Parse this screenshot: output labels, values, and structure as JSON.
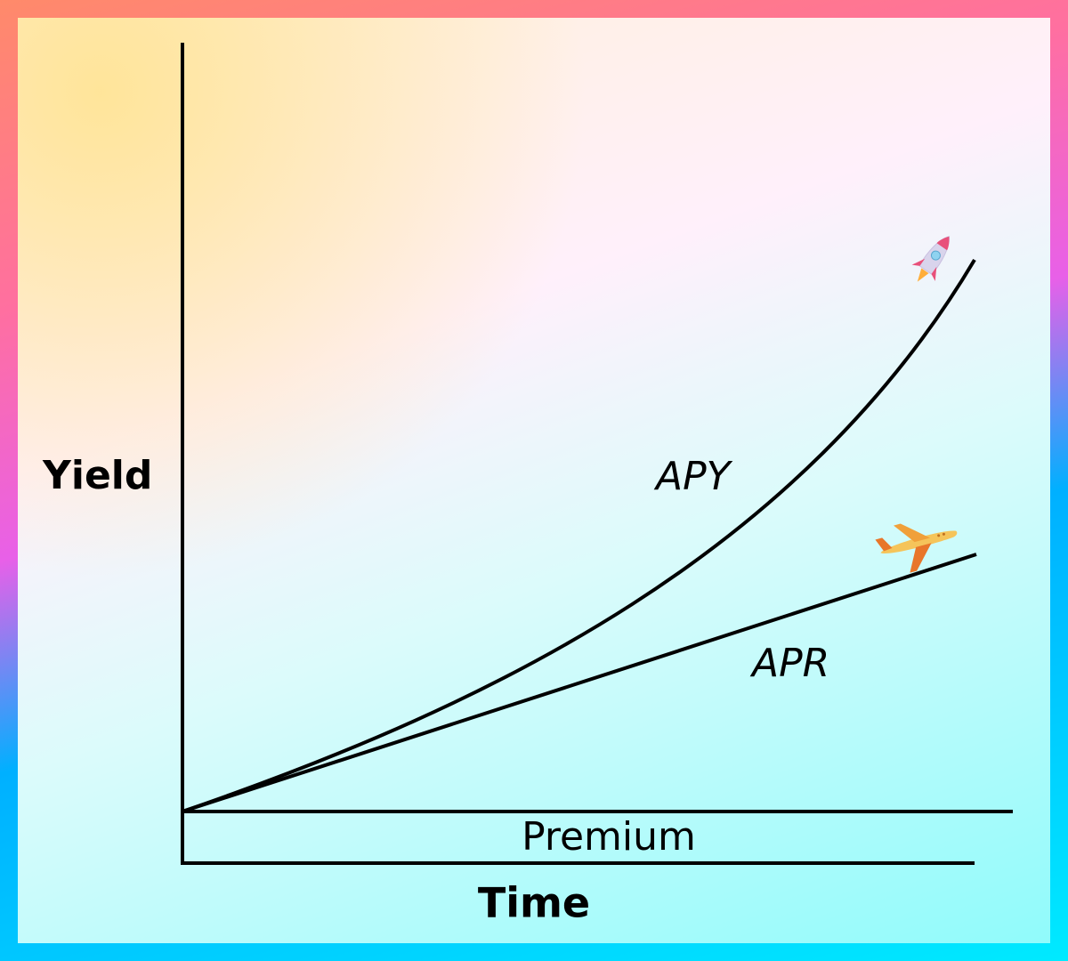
{
  "y_axis_label": "Yield",
  "x_axis_label": "Time",
  "band_label": "Premium",
  "curves": [
    {
      "label": "APY"
    },
    {
      "label": "APR"
    }
  ]
}
